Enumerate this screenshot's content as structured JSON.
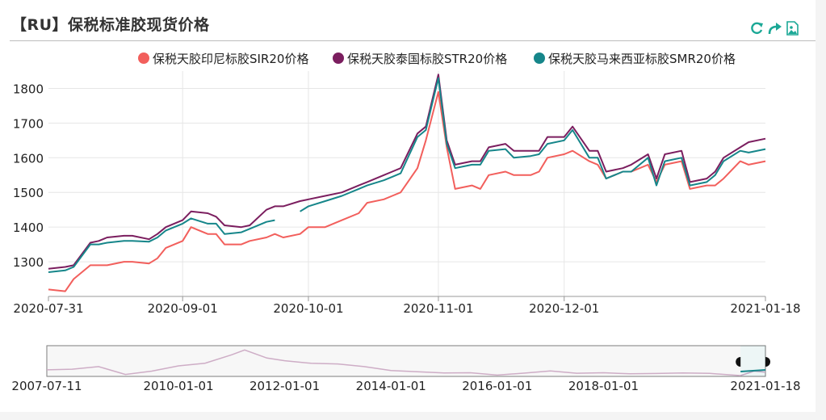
{
  "header": {
    "title": "【RU】保税标准胶现货价格",
    "tools": [
      "refresh-icon",
      "share-icon",
      "save-image-icon"
    ]
  },
  "colors": {
    "sir": "#f25f5c",
    "str": "#7b1e5f",
    "smr": "#16868a",
    "accent": "#1ba896"
  },
  "chart_data": {
    "type": "line",
    "legend_position": "top-right",
    "grid": true,
    "ylim": [
      1200,
      1850
    ],
    "yticks": [
      1300,
      1400,
      1500,
      1600,
      1700,
      1800
    ],
    "xrange": [
      "2020-07-31",
      "2021-01-18"
    ],
    "xtick_labels": [
      "2020-07-31",
      "2020-09-01",
      "2020-10-01",
      "2020-11-01",
      "2020-12-01",
      "2021-01-18"
    ],
    "x": [
      "2020-07-31",
      "2020-08-04",
      "2020-08-06",
      "2020-08-10",
      "2020-08-12",
      "2020-08-14",
      "2020-08-18",
      "2020-08-20",
      "2020-08-24",
      "2020-08-26",
      "2020-08-28",
      "2020-09-01",
      "2020-09-03",
      "2020-09-07",
      "2020-09-09",
      "2020-09-11",
      "2020-09-15",
      "2020-09-17",
      "2020-09-21",
      "2020-09-23",
      "2020-09-25",
      "2020-09-29",
      "2020-10-01",
      "2020-10-05",
      "2020-10-09",
      "2020-10-13",
      "2020-10-15",
      "2020-10-19",
      "2020-10-21",
      "2020-10-23",
      "2020-10-27",
      "2020-10-29",
      "2020-11-01",
      "2020-11-03",
      "2020-11-05",
      "2020-11-09",
      "2020-11-11",
      "2020-11-13",
      "2020-11-17",
      "2020-11-19",
      "2020-11-23",
      "2020-11-25",
      "2020-11-27",
      "2020-12-01",
      "2020-12-03",
      "2020-12-07",
      "2020-12-09",
      "2020-12-11",
      "2020-12-15",
      "2020-12-17",
      "2020-12-21",
      "2020-12-23",
      "2020-12-25",
      "2020-12-29",
      "2020-12-31",
      "2021-01-04",
      "2021-01-06",
      "2021-01-08",
      "2021-01-12",
      "2021-01-14",
      "2021-01-18"
    ],
    "series": [
      {
        "name": "保税天胶印尼标胶SIR20价格",
        "color_key": "sir",
        "values": [
          1220,
          1215,
          1250,
          1290,
          1290,
          1290,
          1300,
          1300,
          1295,
          1310,
          1340,
          1360,
          1400,
          1380,
          1380,
          1350,
          1350,
          1360,
          1370,
          1380,
          1370,
          1380,
          1400,
          1400,
          1420,
          1440,
          1470,
          1480,
          1490,
          1500,
          1570,
          1650,
          1790,
          1630,
          1510,
          1520,
          1510,
          1550,
          1560,
          1550,
          1550,
          1560,
          1600,
          1610,
          1620,
          1590,
          1580,
          1540,
          1560,
          1560,
          1580,
          1530,
          1580,
          1590,
          1510,
          1520,
          1520,
          1540,
          1590,
          1580,
          1590
        ]
      },
      {
        "name": "保税天胶泰国标胶STR20价格",
        "color_key": "str",
        "values": [
          1280,
          1285,
          1290,
          1355,
          1360,
          1370,
          1375,
          1375,
          1365,
          1380,
          1400,
          1420,
          1445,
          1440,
          1430,
          1405,
          1400,
          1405,
          1450,
          1460,
          1460,
          1475,
          1480,
          1490,
          1500,
          1520,
          1530,
          1550,
          1560,
          1570,
          1670,
          1690,
          1840,
          1650,
          1580,
          1590,
          1590,
          1630,
          1640,
          1620,
          1620,
          1620,
          1660,
          1660,
          1690,
          1620,
          1620,
          1560,
          1570,
          1580,
          1610,
          1540,
          1610,
          1620,
          1530,
          1540,
          1560,
          1600,
          1630,
          1645,
          1655
        ]
      },
      {
        "name": "保税天胶马来西亚标胶SMR20价格",
        "color_key": "smr",
        "values": [
          1270,
          1275,
          1285,
          1350,
          1350,
          1355,
          1360,
          1360,
          1358,
          1370,
          1390,
          1410,
          1425,
          1410,
          1410,
          1380,
          1385,
          1395,
          1415,
          1420,
          null,
          1445,
          1460,
          1475,
          1490,
          1510,
          1520,
          1535,
          1545,
          1555,
          1660,
          1680,
          1830,
          1640,
          1570,
          1580,
          1580,
          1620,
          1625,
          1600,
          1605,
          1610,
          1640,
          1650,
          1680,
          1600,
          1600,
          1540,
          1560,
          1560,
          1600,
          1520,
          1590,
          1600,
          1520,
          1530,
          1550,
          1590,
          1620,
          1615,
          1625
        ]
      }
    ],
    "navigator": {
      "xtick_labels": [
        "2007-07-11",
        "2010-01-01",
        "2012-01-01",
        "2014-01-01",
        "2016-01-01",
        "2018-01-01",
        "2021-01-18"
      ]
    }
  }
}
